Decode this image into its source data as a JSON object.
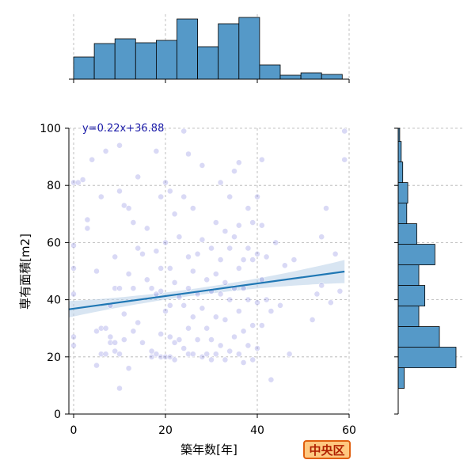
{
  "chart_data": {
    "type": "scatter",
    "xlabel": "築年数[年]",
    "ylabel": "専有面積[m2]",
    "xlim": [
      -1,
      60
    ],
    "ylim": [
      0,
      100
    ],
    "xticks": [
      0,
      20,
      40,
      60
    ],
    "yticks": [
      0,
      20,
      40,
      60,
      80,
      100
    ],
    "grid": true,
    "point_color": "#5050d0",
    "line_color": "#1f77b4",
    "band_color": "#b8d0e8",
    "hist_color": "#5599c8",
    "annotation": "y=0.22x+36.88",
    "annotation_color": "#1a1aa8",
    "regression": {
      "slope": 0.22,
      "intercept": 36.88
    },
    "hist_x": {
      "bin_edges": [
        0,
        4.5,
        9,
        13.5,
        18,
        22.5,
        27,
        31.5,
        36,
        40.5,
        45,
        49.5,
        54,
        58.5
      ],
      "counts": [
        28,
        45,
        51,
        46,
        49,
        76,
        41,
        70,
        78,
        18,
        5,
        8,
        6
      ]
    },
    "hist_y": {
      "bin_edges": [
        9,
        16.2,
        23.4,
        30.6,
        37.8,
        45,
        52.2,
        59.4,
        66.6,
        73.8,
        81,
        88.2,
        95.4,
        100
      ],
      "counts": [
        12,
        115,
        82,
        41,
        53,
        41,
        73,
        37,
        17,
        19,
        9,
        6,
        3
      ]
    },
    "points": [
      [
        0,
        42
      ],
      [
        0,
        27
      ],
      [
        0,
        24
      ],
      [
        0,
        81
      ],
      [
        0,
        59
      ],
      [
        0,
        51
      ],
      [
        1,
        81
      ],
      [
        2,
        82
      ],
      [
        3,
        68
      ],
      [
        3,
        65
      ],
      [
        4,
        89
      ],
      [
        5,
        50
      ],
      [
        5,
        29
      ],
      [
        5,
        17
      ],
      [
        6,
        76
      ],
      [
        6,
        30
      ],
      [
        6,
        21
      ],
      [
        7,
        92
      ],
      [
        7,
        30
      ],
      [
        7,
        21
      ],
      [
        8,
        38
      ],
      [
        8,
        27
      ],
      [
        8,
        25
      ],
      [
        9,
        44
      ],
      [
        9,
        25
      ],
      [
        9,
        22
      ],
      [
        9,
        55
      ],
      [
        10,
        94
      ],
      [
        10,
        78
      ],
      [
        10,
        44
      ],
      [
        10,
        21
      ],
      [
        10,
        9
      ],
      [
        11,
        73
      ],
      [
        11,
        35
      ],
      [
        11,
        26
      ],
      [
        12,
        72
      ],
      [
        12,
        49
      ],
      [
        12,
        16
      ],
      [
        13,
        67
      ],
      [
        13,
        44
      ],
      [
        13,
        29
      ],
      [
        14,
        83
      ],
      [
        14,
        58
      ],
      [
        14,
        32
      ],
      [
        15,
        56
      ],
      [
        15,
        25
      ],
      [
        16,
        65
      ],
      [
        16,
        47
      ],
      [
        17,
        44
      ],
      [
        17,
        22
      ],
      [
        17,
        20
      ],
      [
        18,
        92
      ],
      [
        18,
        57
      ],
      [
        18,
        42
      ],
      [
        18,
        21
      ],
      [
        19,
        76
      ],
      [
        19,
        51
      ],
      [
        19,
        43
      ],
      [
        19,
        28
      ],
      [
        19,
        20
      ],
      [
        20,
        81
      ],
      [
        20,
        60
      ],
      [
        20,
        36
      ],
      [
        20,
        20
      ],
      [
        21,
        78
      ],
      [
        21,
        51
      ],
      [
        21,
        38
      ],
      [
        21,
        27
      ],
      [
        21,
        20
      ],
      [
        22,
        70
      ],
      [
        22,
        46
      ],
      [
        22,
        25
      ],
      [
        22,
        19
      ],
      [
        23,
        62
      ],
      [
        23,
        41
      ],
      [
        23,
        26
      ],
      [
        24,
        99
      ],
      [
        24,
        76
      ],
      [
        24,
        38
      ],
      [
        24,
        23
      ],
      [
        25,
        91
      ],
      [
        25,
        55
      ],
      [
        25,
        44
      ],
      [
        25,
        30
      ],
      [
        25,
        21
      ],
      [
        26,
        72
      ],
      [
        26,
        50
      ],
      [
        26,
        34
      ],
      [
        26,
        21
      ],
      [
        27,
        56
      ],
      [
        27,
        42
      ],
      [
        27,
        26
      ],
      [
        28,
        87
      ],
      [
        28,
        61
      ],
      [
        28,
        37
      ],
      [
        28,
        20
      ],
      [
        29,
        47
      ],
      [
        29,
        30
      ],
      [
        29,
        21
      ],
      [
        30,
        58
      ],
      [
        30,
        43
      ],
      [
        30,
        26
      ],
      [
        30,
        19
      ],
      [
        31,
        67
      ],
      [
        31,
        49
      ],
      [
        31,
        34
      ],
      [
        31,
        21
      ],
      [
        32,
        81
      ],
      [
        32,
        54
      ],
      [
        32,
        42
      ],
      [
        32,
        24
      ],
      [
        33,
        64
      ],
      [
        33,
        46
      ],
      [
        33,
        33
      ],
      [
        33,
        19
      ],
      [
        34,
        76
      ],
      [
        34,
        58
      ],
      [
        34,
        40
      ],
      [
        34,
        22
      ],
      [
        35,
        85
      ],
      [
        35,
        62
      ],
      [
        35,
        44
      ],
      [
        35,
        27
      ],
      [
        36,
        88
      ],
      [
        36,
        66
      ],
      [
        36,
        51
      ],
      [
        36,
        36
      ],
      [
        36,
        21
      ],
      [
        37,
        54
      ],
      [
        37,
        44
      ],
      [
        37,
        29
      ],
      [
        37,
        18
      ],
      [
        38,
        72
      ],
      [
        38,
        58
      ],
      [
        38,
        40
      ],
      [
        38,
        24
      ],
      [
        39,
        67
      ],
      [
        39,
        54
      ],
      [
        39,
        31
      ],
      [
        39,
        19
      ],
      [
        40,
        76
      ],
      [
        40,
        56
      ],
      [
        40,
        39
      ],
      [
        40,
        23
      ],
      [
        41,
        89
      ],
      [
        41,
        66
      ],
      [
        41,
        47
      ],
      [
        41,
        31
      ],
      [
        42,
        55
      ],
      [
        42,
        40
      ],
      [
        43,
        36
      ],
      [
        43,
        12
      ],
      [
        44,
        60
      ],
      [
        45,
        38
      ],
      [
        46,
        52
      ],
      [
        47,
        21
      ],
      [
        48,
        54
      ],
      [
        52,
        33
      ],
      [
        53,
        42
      ],
      [
        54,
        45
      ],
      [
        54,
        62
      ],
      [
        55,
        72
      ],
      [
        56,
        39
      ],
      [
        57,
        56
      ],
      [
        58,
        43
      ],
      [
        59,
        99
      ],
      [
        59,
        89
      ]
    ]
  },
  "badge": {
    "label": "中央区"
  }
}
